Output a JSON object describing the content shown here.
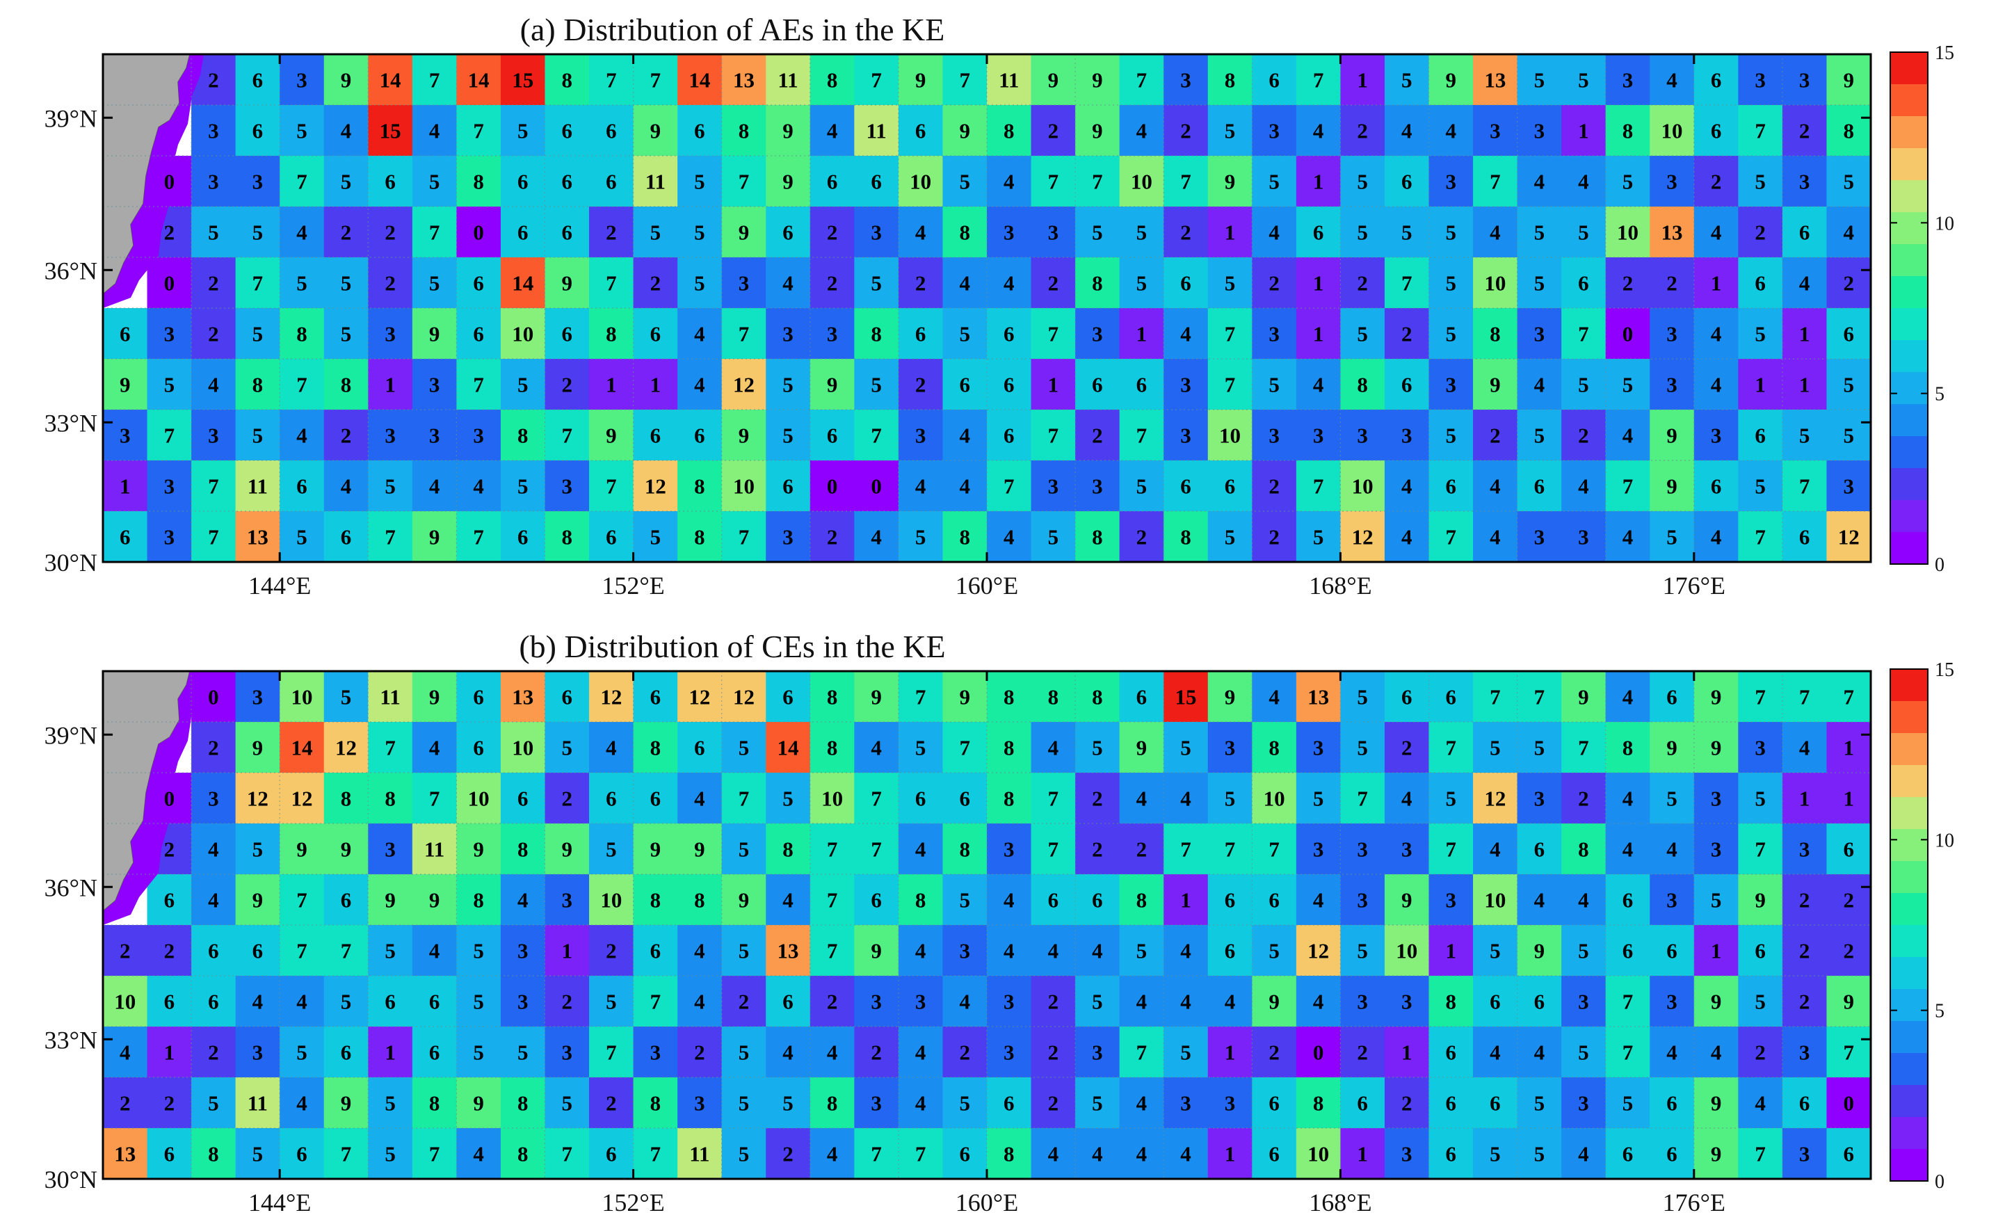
{
  "figure": {
    "colorbar": {
      "min": 0,
      "max": 15,
      "ticks": [
        "0",
        "5",
        "10",
        "15"
      ],
      "colors": [
        "#8f00ff",
        "#7a22f7",
        "#4d3cf0",
        "#2266f2",
        "#1a8df0",
        "#16aeec",
        "#10cbe0",
        "#10e2c4",
        "#18eca0",
        "#52f083",
        "#86f07a",
        "#bdea7a",
        "#f6c86a",
        "#fb9a4c",
        "#fb5a2c",
        "#ef1f17"
      ]
    },
    "land_color": "#a9a9a9"
  },
  "chart_data": [
    {
      "type": "heatmap",
      "title": "(a) Distribution of AEs in the KE",
      "x_tick_labels": [
        "144°E",
        "152°E",
        "160°E",
        "168°E",
        "176°E"
      ],
      "y_tick_labels": [
        "39°N",
        "36°N",
        "33°N",
        "30°N"
      ],
      "value_range": [
        0,
        15
      ],
      "rows_north_to_south": [
        [
          null,
          null,
          2,
          6,
          3,
          9,
          14,
          7,
          14,
          15,
          8,
          7,
          7,
          14,
          13,
          11,
          8,
          7,
          9,
          7,
          11,
          9,
          9,
          7,
          3,
          8,
          6,
          7,
          1,
          5,
          9,
          13,
          5,
          5,
          3,
          4,
          6,
          3,
          3,
          9
        ],
        [
          null,
          null,
          3,
          6,
          5,
          4,
          15,
          4,
          7,
          5,
          6,
          6,
          9,
          6,
          8,
          9,
          4,
          11,
          6,
          9,
          8,
          2,
          9,
          4,
          2,
          5,
          3,
          4,
          2,
          4,
          4,
          3,
          3,
          1,
          8,
          10,
          6,
          7,
          2,
          8
        ],
        [
          null,
          0,
          3,
          3,
          7,
          5,
          6,
          5,
          8,
          6,
          6,
          6,
          11,
          5,
          7,
          9,
          6,
          6,
          10,
          5,
          4,
          7,
          7,
          10,
          7,
          9,
          5,
          1,
          5,
          6,
          3,
          7,
          4,
          4,
          5,
          3,
          2,
          5,
          3,
          5
        ],
        [
          null,
          2,
          5,
          5,
          4,
          2,
          2,
          7,
          0,
          6,
          6,
          2,
          5,
          5,
          9,
          6,
          2,
          3,
          4,
          8,
          3,
          3,
          5,
          5,
          2,
          1,
          4,
          6,
          5,
          5,
          5,
          4,
          5,
          5,
          10,
          13,
          4,
          2,
          6,
          4
        ],
        [
          null,
          0,
          2,
          7,
          5,
          5,
          2,
          5,
          6,
          14,
          9,
          7,
          2,
          5,
          3,
          4,
          2,
          5,
          2,
          4,
          4,
          2,
          8,
          5,
          6,
          5,
          2,
          1,
          2,
          7,
          5,
          10,
          5,
          6,
          2,
          2,
          1,
          6,
          4,
          2
        ],
        [
          6,
          3,
          2,
          5,
          8,
          5,
          3,
          9,
          6,
          10,
          6,
          8,
          6,
          4,
          7,
          3,
          3,
          8,
          6,
          5,
          6,
          7,
          3,
          1,
          4,
          7,
          3,
          1,
          5,
          2,
          5,
          8,
          3,
          7,
          0,
          3,
          4,
          5,
          1,
          6
        ],
        [
          9,
          5,
          4,
          8,
          7,
          8,
          1,
          3,
          7,
          5,
          2,
          1,
          1,
          4,
          12,
          5,
          9,
          5,
          2,
          6,
          6,
          1,
          6,
          6,
          3,
          7,
          5,
          4,
          8,
          6,
          3,
          9,
          4,
          5,
          5,
          3,
          4,
          1,
          1,
          5
        ],
        [
          3,
          7,
          3,
          5,
          4,
          2,
          3,
          3,
          3,
          8,
          7,
          9,
          6,
          6,
          9,
          5,
          6,
          7,
          3,
          4,
          6,
          7,
          2,
          7,
          3,
          10,
          3,
          3,
          3,
          3,
          5,
          2,
          5,
          2,
          4,
          9,
          3,
          6,
          5,
          5
        ],
        [
          1,
          3,
          7,
          11,
          6,
          4,
          5,
          4,
          4,
          5,
          3,
          7,
          12,
          8,
          10,
          6,
          0,
          0,
          4,
          4,
          7,
          3,
          3,
          5,
          6,
          6,
          2,
          7,
          10,
          4,
          6,
          4,
          6,
          4,
          7,
          9,
          6,
          5,
          7,
          3
        ],
        [
          6,
          3,
          7,
          13,
          5,
          6,
          7,
          9,
          7,
          6,
          8,
          6,
          5,
          8,
          7,
          3,
          2,
          4,
          5,
          8,
          4,
          5,
          8,
          2,
          8,
          5,
          2,
          5,
          12,
          4,
          7,
          4,
          3,
          3,
          4,
          5,
          4,
          7,
          6,
          12
        ]
      ]
    },
    {
      "type": "heatmap",
      "title": "(b) Distribution of CEs in the KE",
      "x_tick_labels": [
        "144°E",
        "152°E",
        "160°E",
        "168°E",
        "176°E"
      ],
      "y_tick_labels": [
        "39°N",
        "36°N",
        "33°N",
        "30°N"
      ],
      "value_range": [
        0,
        15
      ],
      "rows_north_to_south": [
        [
          null,
          null,
          0,
          3,
          10,
          5,
          11,
          9,
          6,
          13,
          6,
          12,
          6,
          12,
          12,
          6,
          8,
          9,
          7,
          9,
          8,
          8,
          8,
          6,
          15,
          9,
          4,
          13,
          5,
          6,
          6,
          7,
          7,
          9,
          4,
          6,
          9,
          7,
          7,
          7
        ],
        [
          null,
          null,
          2,
          9,
          14,
          12,
          7,
          4,
          6,
          10,
          5,
          4,
          8,
          6,
          5,
          14,
          8,
          4,
          5,
          7,
          8,
          4,
          5,
          9,
          5,
          3,
          8,
          3,
          5,
          2,
          7,
          5,
          5,
          7,
          8,
          9,
          9,
          3,
          4,
          1
        ],
        [
          null,
          0,
          3,
          12,
          12,
          8,
          8,
          7,
          10,
          6,
          2,
          6,
          6,
          4,
          7,
          5,
          10,
          7,
          6,
          6,
          8,
          7,
          2,
          4,
          4,
          5,
          10,
          5,
          7,
          4,
          5,
          12,
          3,
          2,
          4,
          5,
          3,
          5,
          1,
          1
        ],
        [
          null,
          2,
          4,
          5,
          9,
          9,
          3,
          11,
          9,
          8,
          9,
          5,
          9,
          9,
          5,
          8,
          7,
          7,
          4,
          8,
          3,
          7,
          2,
          2,
          7,
          7,
          7,
          3,
          3,
          3,
          7,
          4,
          6,
          8,
          4,
          4,
          3,
          7,
          3,
          6
        ],
        [
          null,
          6,
          4,
          9,
          7,
          6,
          9,
          9,
          8,
          4,
          3,
          10,
          8,
          8,
          9,
          4,
          7,
          6,
          8,
          5,
          4,
          6,
          6,
          8,
          1,
          6,
          6,
          4,
          3,
          9,
          3,
          10,
          4,
          4,
          6,
          3,
          5,
          9,
          2,
          2
        ],
        [
          2,
          2,
          6,
          6,
          7,
          7,
          5,
          4,
          5,
          3,
          1,
          2,
          6,
          4,
          5,
          13,
          7,
          9,
          4,
          3,
          4,
          4,
          4,
          5,
          4,
          6,
          5,
          12,
          5,
          10,
          1,
          5,
          9,
          5,
          6,
          6,
          1,
          6,
          2,
          2
        ],
        [
          10,
          6,
          6,
          4,
          4,
          5,
          6,
          6,
          5,
          3,
          2,
          5,
          7,
          4,
          2,
          6,
          2,
          3,
          3,
          4,
          3,
          2,
          5,
          4,
          4,
          4,
          9,
          4,
          3,
          3,
          8,
          6,
          6,
          3,
          7,
          3,
          9,
          5,
          2,
          9
        ],
        [
          4,
          1,
          2,
          3,
          5,
          6,
          1,
          6,
          5,
          5,
          3,
          7,
          3,
          2,
          5,
          4,
          4,
          2,
          4,
          2,
          3,
          2,
          3,
          7,
          5,
          1,
          2,
          0,
          2,
          1,
          6,
          4,
          4,
          5,
          7,
          4,
          4,
          2,
          3,
          7
        ],
        [
          2,
          2,
          5,
          11,
          4,
          9,
          5,
          8,
          9,
          8,
          5,
          2,
          8,
          3,
          5,
          5,
          8,
          3,
          4,
          5,
          6,
          2,
          5,
          4,
          3,
          3,
          6,
          8,
          6,
          2,
          6,
          6,
          5,
          3,
          5,
          6,
          9,
          4,
          6,
          0
        ],
        [
          13,
          6,
          8,
          5,
          6,
          7,
          5,
          7,
          4,
          8,
          7,
          6,
          7,
          11,
          5,
          2,
          4,
          7,
          7,
          6,
          8,
          4,
          4,
          4,
          4,
          1,
          6,
          10,
          1,
          3,
          6,
          5,
          5,
          4,
          6,
          6,
          9,
          7,
          3,
          6
        ]
      ]
    }
  ]
}
